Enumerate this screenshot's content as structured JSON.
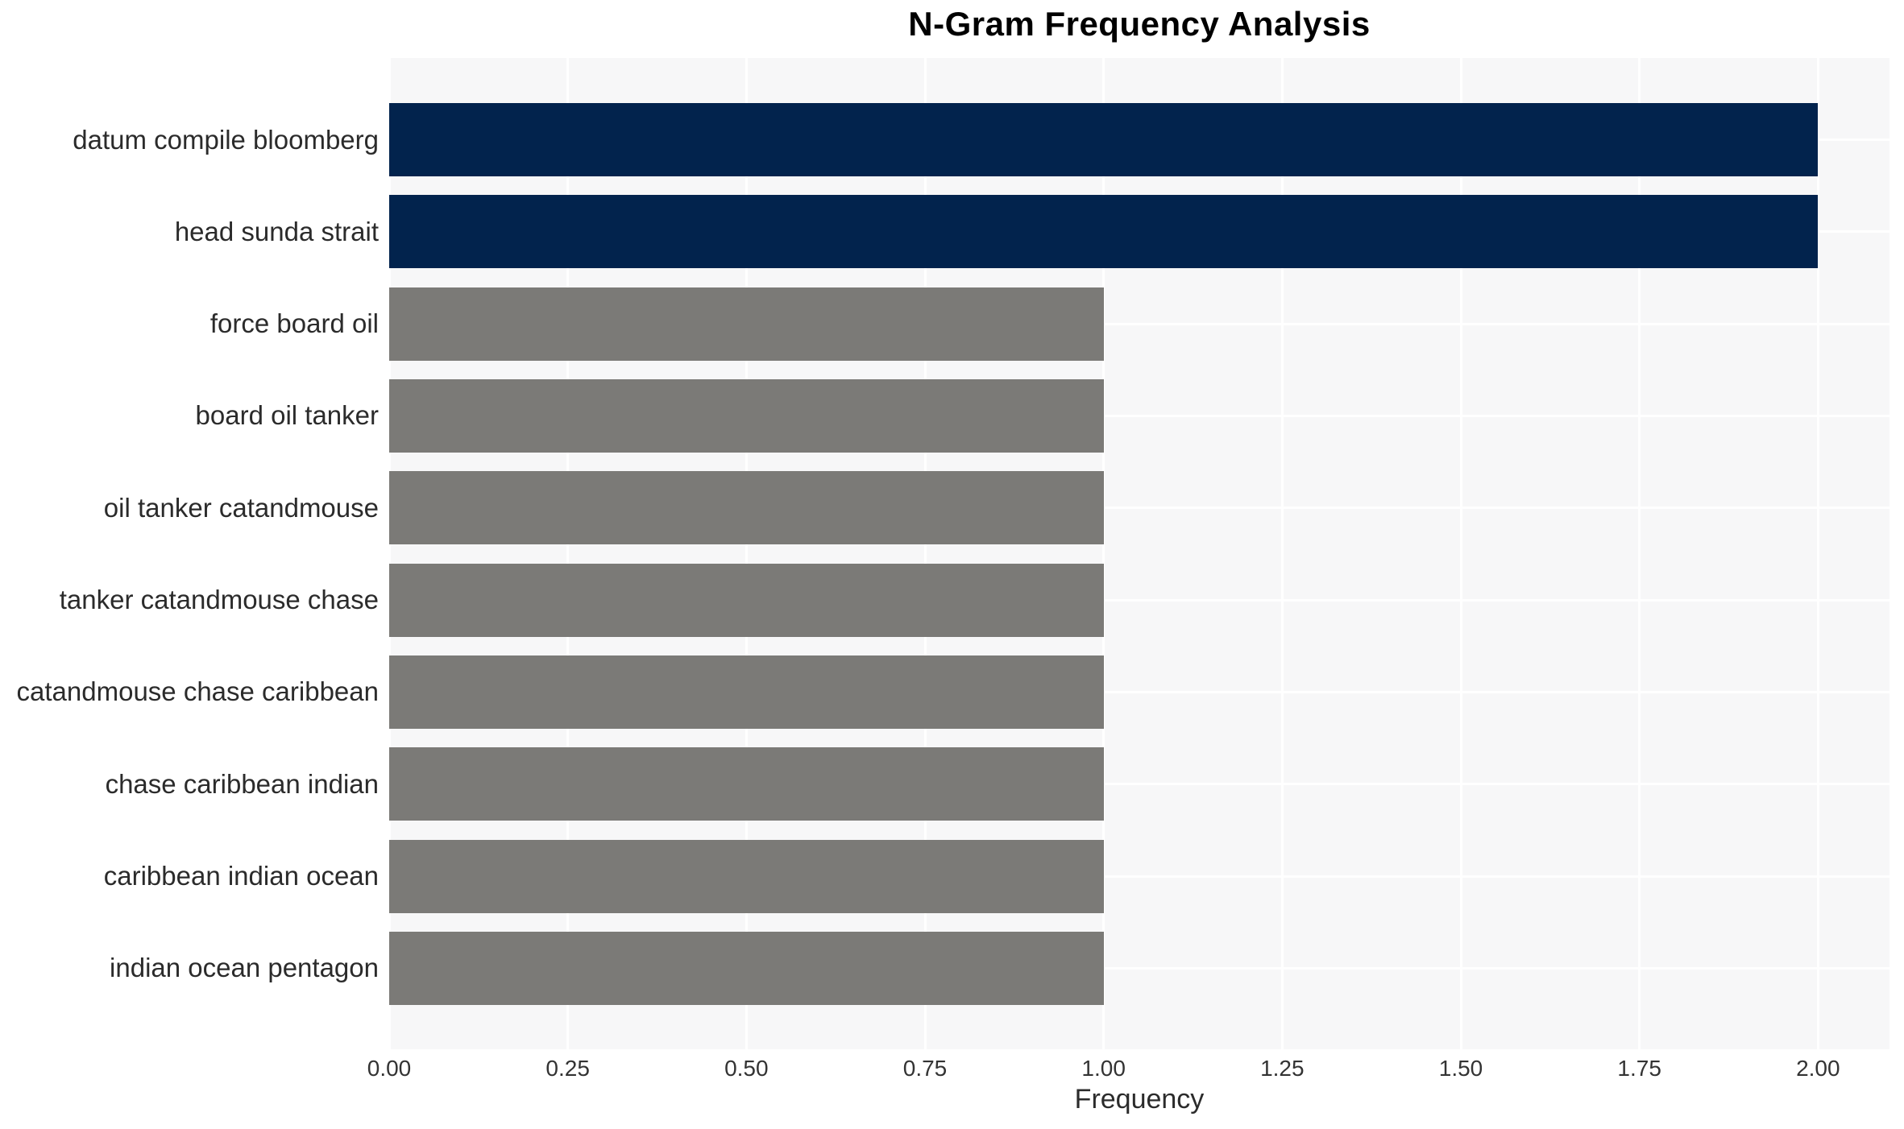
{
  "chart_data": {
    "type": "bar",
    "orientation": "horizontal",
    "title": "N-Gram Frequency Analysis",
    "xlabel": "Frequency",
    "ylabel": "",
    "categories": [
      "datum compile bloomberg",
      "head sunda strait",
      "force board oil",
      "board oil tanker",
      "oil tanker catandmouse",
      "tanker catandmouse chase",
      "catandmouse chase caribbean",
      "chase caribbean indian",
      "caribbean indian ocean",
      "indian ocean pentagon"
    ],
    "values": [
      2,
      2,
      1,
      1,
      1,
      1,
      1,
      1,
      1,
      1
    ],
    "bar_colors": [
      "#02234d",
      "#02234d",
      "#7b7a77",
      "#7b7a77",
      "#7b7a77",
      "#7b7a77",
      "#7b7a77",
      "#7b7a77",
      "#7b7a77",
      "#7b7a77"
    ],
    "xlim": [
      0,
      2.1
    ],
    "xticks": [
      0,
      0.25,
      0.5,
      0.75,
      1,
      1.25,
      1.5,
      1.75,
      2
    ],
    "xtick_labels": [
      "0.00",
      "0.25",
      "0.50",
      "0.75",
      "1.00",
      "1.25",
      "1.50",
      "1.75",
      "2.00"
    ],
    "grid": true,
    "legend": false,
    "colors": {
      "bar_highlight": "#02234d",
      "bar_default": "#7b7a77",
      "plot_background": "#f7f7f8",
      "gridline": "#ffffff",
      "title_text": "#000000",
      "label_text": "#2b2b2b"
    }
  }
}
